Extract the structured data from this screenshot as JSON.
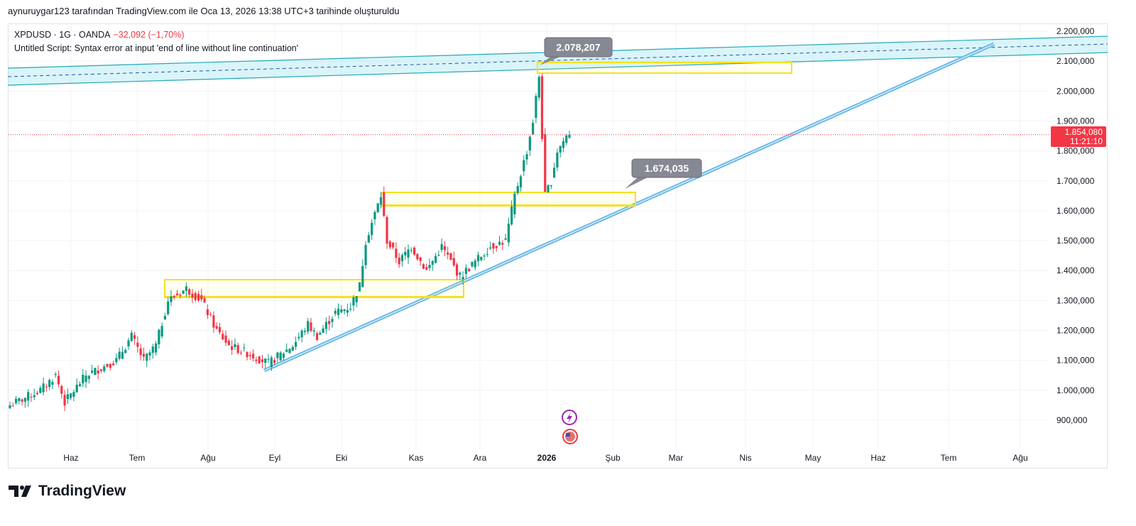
{
  "credit": "aynuruygar123 tarafından TradingView.com ile Oca 13, 2026 13:38 UTC+3 tarihinde oluşturuldu",
  "legend": {
    "symbol": "XPDUSD · 1G · OANDA",
    "change": "−32,092 (−1,70%)",
    "script_error": "Untitled Script: Syntax error at input 'end of line without line continuation'"
  },
  "brand": "TradingView",
  "colors": {
    "up": "#089981",
    "down": "#f23645",
    "channel": "#26a7b5",
    "trend": "#64b5e6",
    "box": "#f5e11f",
    "callout": "#868993"
  },
  "chart_data": {
    "type": "candlestick",
    "symbol": "XPDUSD",
    "interval": "1G",
    "y_ticks": [
      "2.200,000",
      "2.100,000",
      "2.000,000",
      "1.900,000",
      "1.800,000",
      "1.700,000",
      "1.600,000",
      "1.500,000",
      "1.400,000",
      "1.300,000",
      "1.200,000",
      "1.100,000",
      "1.000,000",
      "900,000"
    ],
    "ylim": [
      900000,
      2200000
    ],
    "x_ticks": [
      "Haz",
      "Tem",
      "Ağu",
      "Eyl",
      "Eki",
      "Kas",
      "Ara",
      "2026",
      "Şub",
      "Mar",
      "Nis",
      "May",
      "Haz",
      "Tem",
      "Ağu"
    ],
    "bars": 185,
    "close_waypoints": [
      [
        0,
        950000
      ],
      [
        10,
        1000000
      ],
      [
        15,
        1050000
      ],
      [
        18,
        960000
      ],
      [
        25,
        1050000
      ],
      [
        35,
        1100000
      ],
      [
        40,
        1180000
      ],
      [
        44,
        1100000
      ],
      [
        48,
        1150000
      ],
      [
        52,
        1300000
      ],
      [
        58,
        1340000
      ],
      [
        63,
        1300000
      ],
      [
        68,
        1200000
      ],
      [
        72,
        1150000
      ],
      [
        79,
        1120000
      ],
      [
        85,
        1090000
      ],
      [
        89,
        1120000
      ],
      [
        93,
        1150000
      ],
      [
        98,
        1220000
      ],
      [
        101,
        1180000
      ],
      [
        107,
        1260000
      ],
      [
        112,
        1280000
      ],
      [
        115,
        1350000
      ],
      [
        117,
        1500000
      ],
      [
        122,
        1650000
      ],
      [
        124,
        1500000
      ],
      [
        128,
        1430000
      ],
      [
        132,
        1480000
      ],
      [
        137,
        1400000
      ],
      [
        142,
        1480000
      ],
      [
        148,
        1380000
      ],
      [
        152,
        1420000
      ],
      [
        158,
        1480000
      ],
      [
        163,
        1500000
      ],
      [
        166,
        1650000
      ],
      [
        170,
        1800000
      ],
      [
        172,
        1900000
      ],
      [
        174,
        2050000
      ],
      [
        176,
        1650000
      ],
      [
        178,
        1700000
      ],
      [
        180,
        1800000
      ],
      [
        183,
        1850000
      ],
      [
        184,
        1854080
      ]
    ],
    "last_price": "1.854,080",
    "countdown": "11:21:10",
    "annotations": [
      "2.078,207",
      "1.674,035"
    ]
  }
}
